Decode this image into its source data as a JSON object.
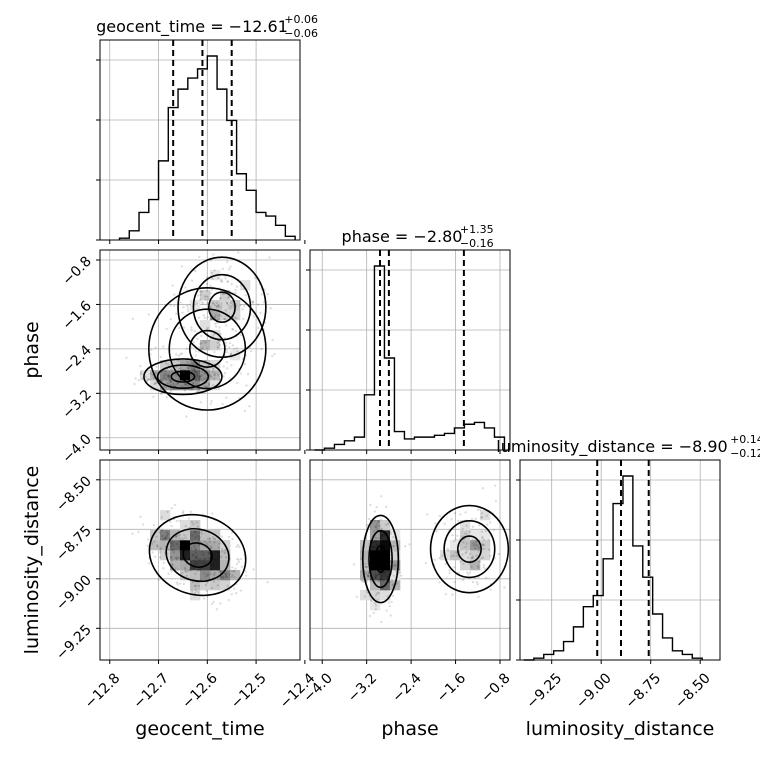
{
  "chart_data": {
    "type": "corner",
    "parameters": [
      {
        "name": "geocent_time",
        "range": [
          -12.82,
          -12.41
        ],
        "ticks": [
          -12.8,
          -12.7,
          -12.6,
          -12.5,
          -12.4
        ]
      },
      {
        "name": "phase",
        "range": [
          -4.22,
          -0.62
        ],
        "ticks": [
          -4.0,
          -3.2,
          -2.4,
          -1.6,
          -0.8
        ]
      },
      {
        "name": "luminosity_distance",
        "range": [
          -9.41,
          -8.4
        ],
        "ticks": [
          -9.25,
          -9.0,
          -8.75,
          -8.5
        ]
      }
    ],
    "titles": [
      {
        "name": "geocent_time",
        "median": "−12.61",
        "plus": "+0.06",
        "minus": "−0.06"
      },
      {
        "name": "phase",
        "median": "−2.80",
        "plus": "+1.35",
        "minus": "−0.16"
      },
      {
        "name": "luminosity_distance",
        "median": "−8.90",
        "plus": "+0.14",
        "minus": "−0.12"
      }
    ],
    "tick_labels": {
      "geocent_time": [
        "−12.8",
        "−12.7",
        "−12.6",
        "−12.5",
        "−12.4"
      ],
      "phase": [
        "−4.0",
        "−3.2",
        "−2.4",
        "−1.6",
        "−0.8"
      ],
      "luminosity_distance": [
        "−9.25",
        "−9.00",
        "−8.75",
        "−8.50"
      ]
    },
    "quantiles": {
      "geocent_time": [
        -12.67,
        -12.61,
        -12.55
      ],
      "phase": [
        -2.96,
        -2.8,
        -1.45
      ],
      "luminosity_distance": [
        -9.02,
        -8.9,
        -8.76
      ]
    },
    "histograms": {
      "geocent_time": {
        "edges": [
          -12.78,
          -12.76,
          -12.74,
          -12.72,
          -12.7,
          -12.68,
          -12.66,
          -12.64,
          -12.62,
          -12.6,
          -12.58,
          -12.56,
          -12.54,
          -12.52,
          -12.5,
          -12.48,
          -12.46,
          -12.44,
          -12.42
        ],
        "counts": [
          0.01,
          0.05,
          0.15,
          0.22,
          0.43,
          0.72,
          0.82,
          0.88,
          0.93,
          1.0,
          0.82,
          0.65,
          0.36,
          0.27,
          0.15,
          0.13,
          0.08,
          0.02
        ]
      },
      "phase": {
        "edges": [
          -4.14,
          -3.96,
          -3.78,
          -3.6,
          -3.42,
          -3.24,
          -3.06,
          -2.88,
          -2.7,
          -2.52,
          -2.34,
          -2.16,
          -1.98,
          -1.8,
          -1.62,
          -1.44,
          -1.26,
          -1.08,
          -0.9,
          -0.72
        ],
        "counts": [
          0.0,
          0.01,
          0.03,
          0.05,
          0.07,
          0.3,
          1.0,
          0.5,
          0.1,
          0.06,
          0.07,
          0.07,
          0.08,
          0.09,
          0.12,
          0.14,
          0.15,
          0.12,
          0.07
        ]
      },
      "luminosity_distance": {
        "edges": [
          -9.39,
          -9.34,
          -9.29,
          -9.24,
          -9.19,
          -9.14,
          -9.09,
          -9.04,
          -8.99,
          -8.94,
          -8.89,
          -8.84,
          -8.79,
          -8.74,
          -8.69,
          -8.64,
          -8.59,
          -8.54,
          -8.49
        ],
        "counts": [
          0.0,
          0.01,
          0.03,
          0.05,
          0.1,
          0.18,
          0.29,
          0.35,
          0.55,
          0.85,
          1.0,
          0.62,
          0.45,
          0.25,
          0.12,
          0.05,
          0.03,
          0.01
        ]
      }
    },
    "pairs": [
      {
        "x": "geocent_time",
        "y": "phase",
        "components": [
          {
            "cx": -12.65,
            "cy": -2.9,
            "sx": 0.04,
            "sy": 0.16,
            "n": 430
          },
          {
            "cx": -12.57,
            "cy": -1.65,
            "sx": 0.045,
            "sy": 0.45,
            "n": 380
          },
          {
            "cx": -12.6,
            "cy": -2.4,
            "sx": 0.06,
            "sy": 0.55,
            "n": 240
          }
        ],
        "contour_levels": 3
      },
      {
        "x": "geocent_time",
        "y": "luminosity_distance",
        "components": [
          {
            "cx": -12.62,
            "cy": -8.88,
            "sx": 0.05,
            "sy": 0.1,
            "n": 650,
            "rho": 0.45
          }
        ],
        "contour_levels": 3
      },
      {
        "x": "phase",
        "y": "luminosity_distance",
        "components": [
          {
            "cx": -2.95,
            "cy": -8.9,
            "sx": 0.16,
            "sy": 0.11,
            "n": 520
          },
          {
            "cx": -1.35,
            "cy": -8.85,
            "sx": 0.35,
            "sy": 0.11,
            "n": 280
          }
        ],
        "contour_levels": 3
      }
    ],
    "grid": true
  }
}
